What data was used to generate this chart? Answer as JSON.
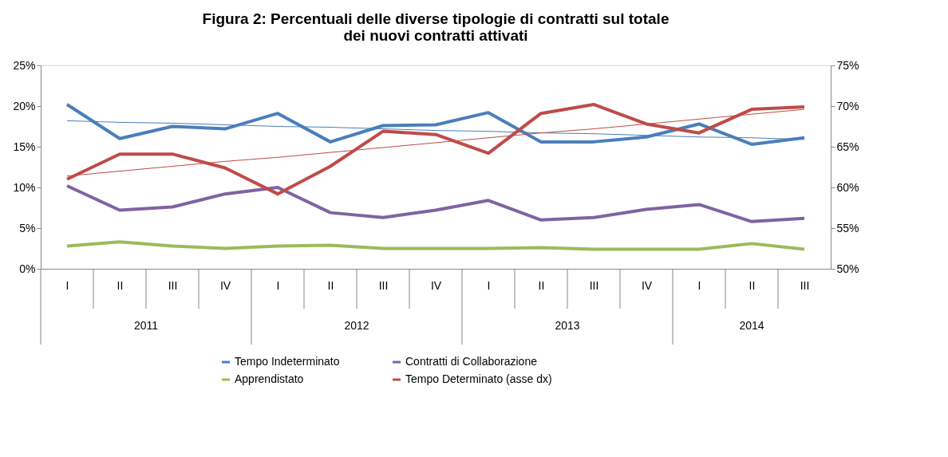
{
  "chart_data": {
    "type": "line",
    "title": "Figura 2: Percentuali delle diverse tipologie di contratti sul totale dei nuovi contratti attivati",
    "categories": [
      "I",
      "II",
      "III",
      "IV",
      "I",
      "II",
      "III",
      "IV",
      "I",
      "II",
      "III",
      "IV",
      "I",
      "II",
      "III"
    ],
    "annotations": [
      "2011",
      "2012",
      "2013",
      "2014"
    ],
    "series": [
      {
        "name": "Tempo Indeterminato",
        "color": "#4a7ebb",
        "values": [
          20.2,
          16.0,
          17.5,
          17.2,
          19.1,
          15.6,
          17.6,
          17.7,
          19.2,
          15.6,
          15.6,
          16.2,
          17.8,
          15.3,
          16.1
        ]
      },
      {
        "name": "Apprendistato",
        "color": "#9bbb59",
        "values": [
          2.8,
          3.3,
          2.8,
          2.5,
          2.8,
          2.9,
          2.5,
          2.5,
          2.5,
          2.6,
          2.4,
          2.4,
          2.4,
          3.1,
          2.4
        ]
      },
      {
        "name": "Contratti di Collaborazione",
        "color": "#7f63a1",
        "values": [
          10.2,
          7.2,
          7.6,
          9.2,
          10.0,
          6.9,
          6.3,
          7.2,
          8.4,
          6.0,
          6.3,
          7.3,
          7.9,
          5.8,
          6.2
        ]
      },
      {
        "name": "Tempo Determinato (asse dx)",
        "color": "#be4b48",
        "axis": "y2",
        "values": [
          61.0,
          64.1,
          64.1,
          62.4,
          59.2,
          62.6,
          66.9,
          66.5,
          64.2,
          69.1,
          70.2,
          67.8,
          66.7,
          69.6,
          69.9
        ]
      },
      {
        "type": "line",
        "color": "#4a7ebb",
        "values": [
          18.2,
          18.0,
          17.9,
          17.7,
          17.5,
          17.4,
          17.2,
          17.0,
          16.9,
          16.7,
          16.6,
          16.4,
          16.2,
          16.1,
          15.9
        ]
      },
      {
        "type": "line",
        "color": "#be4b48",
        "axis": "y2",
        "values": [
          61.4,
          62.0,
          62.6,
          63.2,
          63.7,
          64.3,
          64.9,
          65.5,
          66.1,
          66.7,
          67.2,
          67.8,
          68.4,
          69.0,
          69.6
        ]
      }
    ],
    "ylim": [
      0,
      25
    ],
    "yticks": [
      {
        "value": 0,
        "label": "0%"
      },
      {
        "value": 5,
        "label": "5%"
      },
      {
        "value": 10,
        "label": "10%"
      },
      {
        "value": 15,
        "label": "15%"
      },
      {
        "value": 20,
        "label": "20%"
      },
      {
        "value": 25,
        "label": "25%"
      }
    ],
    "y2lim": [
      50,
      75
    ],
    "y2ticks": [
      {
        "value": 50,
        "label": "50%"
      },
      {
        "value": 55,
        "label": "55%"
      },
      {
        "value": 60,
        "label": "60%"
      },
      {
        "value": 65,
        "label": "65%"
      },
      {
        "value": 70,
        "label": "70%"
      },
      {
        "value": 75,
        "label": "75%"
      }
    ],
    "legend": "bottom",
    "marker": "none",
    "line_style": "solid"
  }
}
